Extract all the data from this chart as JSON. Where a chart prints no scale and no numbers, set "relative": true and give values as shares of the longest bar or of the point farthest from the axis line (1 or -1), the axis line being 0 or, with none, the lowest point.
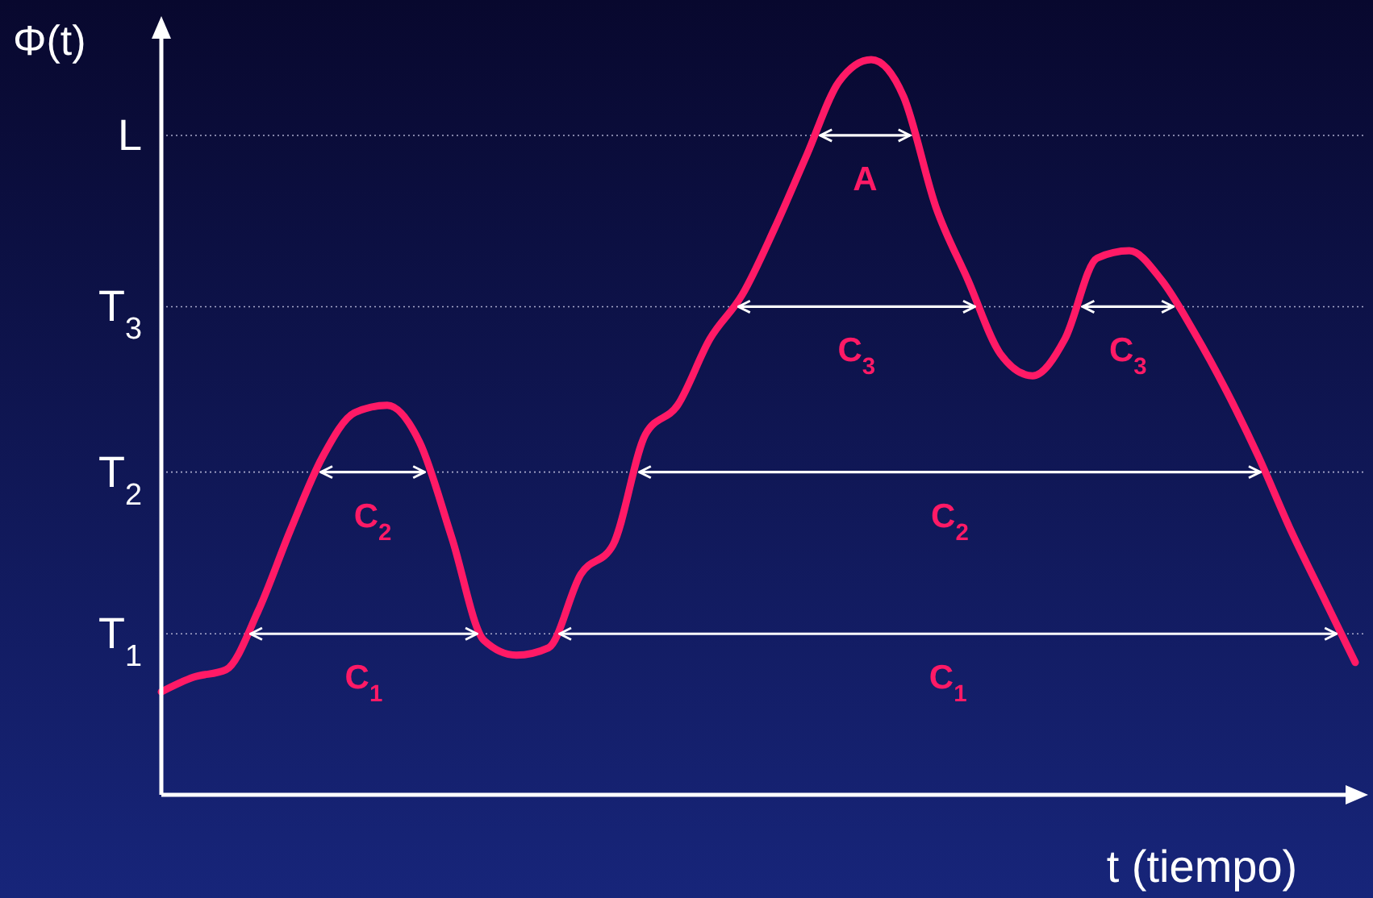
{
  "chart_data": {
    "type": "line",
    "relative": true,
    "ylabel": "Φ(t)",
    "xlabel": "t (tiempo)",
    "color": "#ff1a66",
    "categories": [
      null,
      null,
      null,
      null,
      null,
      null,
      null,
      null,
      null,
      null,
      null,
      null,
      null,
      null,
      null,
      null,
      null,
      null,
      null,
      null,
      null,
      null,
      null,
      null,
      null,
      null,
      null,
      null,
      null,
      null,
      null,
      null,
      null,
      null,
      null,
      null,
      null,
      null
    ],
    "values": [
      0.14,
      0.16,
      0.17,
      0.25,
      0.36,
      0.46,
      0.52,
      0.53,
      0.48,
      0.35,
      0.21,
      0.19,
      0.2,
      0.3,
      0.34,
      0.49,
      0.53,
      0.62,
      0.68,
      0.77,
      0.87,
      0.97,
      1.0,
      0.95,
      0.8,
      0.7,
      0.6,
      0.57,
      0.62,
      0.73,
      0.74,
      0.7,
      0.63,
      0.55,
      0.46,
      0.36,
      0.27,
      0.18
    ],
    "ref_lines": [
      {
        "axis": "y",
        "value": 0.219,
        "label": "T$_{1}$"
      },
      {
        "axis": "y",
        "value": 0.439,
        "label": "T$_{2}$"
      },
      {
        "axis": "y",
        "value": 0.664,
        "label": "T$_{3}$"
      },
      {
        "axis": "y",
        "value": 0.897,
        "label": "L"
      }
    ],
    "annotations": [
      "C$_{1}$",
      "C$_{1}$",
      "C$_{2}$",
      "C$_{2}$",
      "C$_{3}$",
      "C$_{3}$",
      "A"
    ]
  }
}
